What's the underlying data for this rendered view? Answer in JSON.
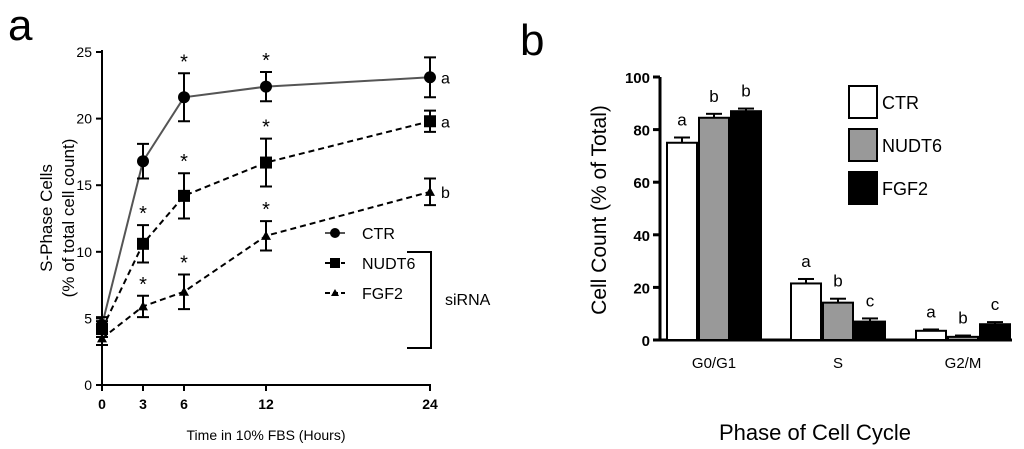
{
  "chart_data": [
    {
      "panel_label": "a",
      "type": "line",
      "xlabel": "Time in 10% FBS (Hours)",
      "ylabel": "S-Phase Cells",
      "ylabel2": "(% of total cell count)",
      "x": [
        0,
        3,
        6,
        12,
        24
      ],
      "xticks": [
        "0",
        "3",
        "6",
        "12",
        "24"
      ],
      "yticks": [
        "0",
        "5",
        "10",
        "15",
        "20",
        "25"
      ],
      "ylim": [
        0,
        25
      ],
      "legend_group_label": "siRNA",
      "legend_placement": "bottom-right",
      "series": [
        {
          "name": "CTR",
          "marker": "circle",
          "line": "solid",
          "color": "#555555",
          "values": [
            4.5,
            16.8,
            21.6,
            22.4,
            23.1
          ],
          "errors": [
            0.6,
            1.3,
            1.8,
            1.1,
            1.5
          ],
          "stars": [
            false,
            false,
            true,
            true,
            false
          ],
          "end_label": "a"
        },
        {
          "name": "NUDT6",
          "marker": "square",
          "line": "dashed",
          "color": "#000000",
          "values": [
            4.2,
            10.6,
            14.2,
            16.7,
            19.8
          ],
          "errors": [
            0.6,
            1.4,
            1.7,
            1.8,
            0.8
          ],
          "stars": [
            false,
            true,
            true,
            true,
            false
          ],
          "end_label": "a"
        },
        {
          "name": "FGF2",
          "marker": "triangle",
          "line": "dashed",
          "color": "#000000",
          "values": [
            3.5,
            5.9,
            7.0,
            11.2,
            14.5
          ],
          "errors": [
            0.5,
            0.8,
            1.3,
            1.1,
            1.0
          ],
          "stars": [
            false,
            true,
            true,
            true,
            false
          ],
          "end_label": "b"
        }
      ],
      "star_symbol": "*"
    },
    {
      "panel_label": "b",
      "type": "bar",
      "xlabel": "Phase of Cell Cycle",
      "ylabel": "Cell Count (% of Total)",
      "categories": [
        "G0/G1",
        "S",
        "G2/M"
      ],
      "yticks": [
        "0",
        "20",
        "40",
        "60",
        "80",
        "100"
      ],
      "ylim": [
        0,
        100
      ],
      "legend_placement": "top-right",
      "series": [
        {
          "name": "CTR",
          "color": "#ffffff",
          "values": [
            75,
            21.5,
            3.5
          ],
          "errors": [
            2,
            1.7,
            0.5
          ],
          "labels": [
            "a",
            "a",
            "a"
          ]
        },
        {
          "name": "NUDT6",
          "color": "#999999",
          "values": [
            84.5,
            14.2,
            1.2
          ],
          "errors": [
            1.5,
            1.5,
            0.5
          ],
          "labels": [
            "b",
            "b",
            "b"
          ]
        },
        {
          "name": "FGF2",
          "color": "#000000",
          "values": [
            87,
            7,
            6
          ],
          "errors": [
            1,
            1.2,
            0.8
          ],
          "labels": [
            "b",
            "c",
            "c"
          ]
        }
      ]
    }
  ]
}
